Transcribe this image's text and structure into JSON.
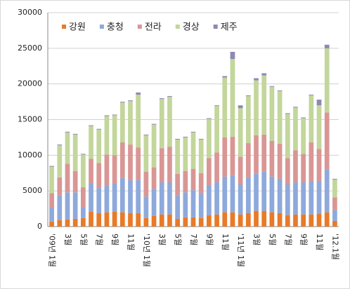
{
  "chart_data": {
    "type": "stacked_bar",
    "categories": [
      "'09년 1월",
      null,
      "3월",
      null,
      "5월",
      null,
      "7월",
      null,
      "9월",
      null,
      "11월",
      null,
      "'10년 1월",
      null,
      "3월",
      null,
      "5월",
      null,
      "7월",
      null,
      "9월",
      null,
      "11월",
      null,
      "'11년 1월",
      null,
      "3월",
      null,
      "5월",
      null,
      "7월",
      null,
      "9월",
      null,
      "11월",
      null,
      "'12.1월"
    ],
    "series": [
      {
        "name": "강원",
        "color": "#e87a28",
        "values": [
          700,
          900,
          1000,
          1100,
          1200,
          2100,
          1900,
          2000,
          2100,
          2000,
          1900,
          1900,
          1200,
          1500,
          1700,
          1700,
          1100,
          1300,
          1300,
          1200,
          1600,
          1700,
          2000,
          2000,
          1700,
          1900,
          2200,
          2200,
          2000,
          1900,
          1600,
          1700,
          1700,
          1700,
          1800,
          2000,
          800
        ]
      },
      {
        "name": "충청",
        "color": "#8ea9db",
        "values": [
          2000,
          3500,
          3800,
          3700,
          1500,
          3900,
          3500,
          3700,
          3900,
          4800,
          4600,
          4600,
          3000,
          3800,
          4500,
          4500,
          3300,
          3500,
          3800,
          3500,
          4200,
          4500,
          5000,
          5200,
          4200,
          5000,
          5200,
          5500,
          5000,
          4800,
          4300,
          4500,
          4500,
          4700,
          4600,
          6000,
          1500
        ]
      },
      {
        "name": "전라",
        "color": "#d99694",
        "values": [
          2000,
          2500,
          4000,
          3000,
          2800,
          3500,
          3500,
          4400,
          4000,
          5000,
          5000,
          4600,
          3500,
          3000,
          4800,
          5000,
          3000,
          3000,
          3000,
          2800,
          3800,
          4200,
          5500,
          5400,
          3900,
          4800,
          5400,
          5200,
          5000,
          4900,
          3700,
          4500,
          4000,
          5400,
          4500,
          8000,
          1800
        ]
      },
      {
        "name": "경상",
        "color": "#c3d69b",
        "values": [
          3700,
          4500,
          4400,
          5100,
          4600,
          4600,
          4700,
          5400,
          5600,
          5600,
          6100,
          7400,
          5100,
          6000,
          6900,
          7000,
          4800,
          4700,
          5100,
          4700,
          5500,
          6500,
          8400,
          10900,
          6800,
          6600,
          7700,
          8300,
          7600,
          7400,
          6200,
          6000,
          5000,
          6600,
          6100,
          9000,
          2500
        ]
      },
      {
        "name": "제주",
        "color": "#8e88b4",
        "values": [
          100,
          100,
          100,
          100,
          100,
          100,
          100,
          100,
          100,
          100,
          100,
          300,
          100,
          100,
          100,
          100,
          100,
          100,
          100,
          100,
          100,
          100,
          200,
          1000,
          400,
          100,
          300,
          300,
          100,
          100,
          100,
          100,
          100,
          100,
          800,
          500,
          100
        ]
      }
    ],
    "ylim": [
      0,
      30000
    ],
    "yticks": [
      0,
      5000,
      10000,
      15000,
      20000,
      25000,
      30000
    ],
    "grid": true
  }
}
